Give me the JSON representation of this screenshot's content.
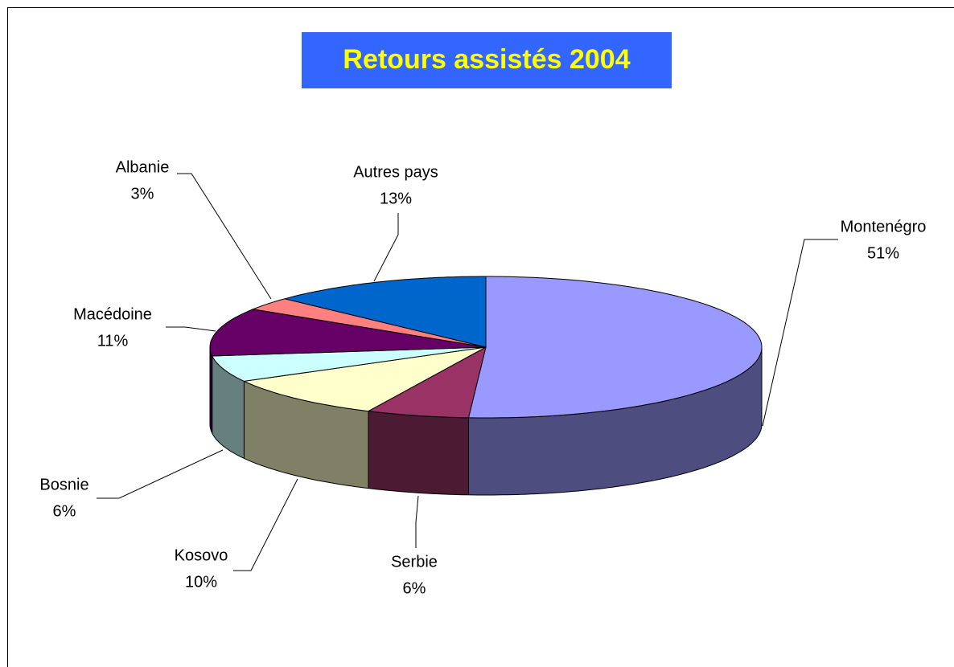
{
  "chart_data": {
    "type": "pie3d",
    "title": "Retours assistés 2004",
    "categories": [
      "Montenégro",
      "Serbie",
      "Kosovo",
      "Bosnie",
      "Macédoine",
      "Albanie",
      "Autres pays"
    ],
    "values": [
      51,
      6,
      10,
      6,
      11,
      3,
      13
    ],
    "value_labels": [
      "51%",
      "6%",
      "10%",
      "6%",
      "11%",
      "3%",
      "13%"
    ],
    "colors": [
      "#9999ff",
      "#993366",
      "#ffffcc",
      "#ccffff",
      "#660066",
      "#ff8080",
      "#0066cc"
    ]
  }
}
